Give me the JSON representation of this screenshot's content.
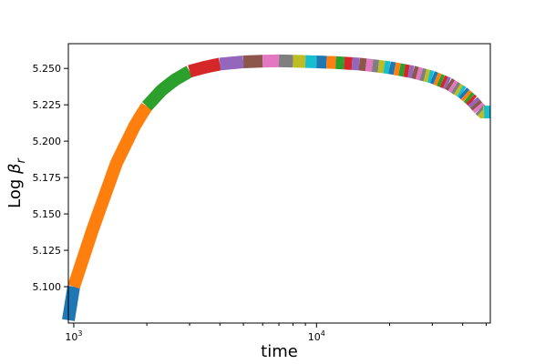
{
  "chart_data": {
    "type": "line",
    "title": "",
    "xlabel": "time",
    "ylabel_text": "Log ",
    "ylabel_symbol": "β",
    "ylabel_subscript": "r",
    "xscale": "log",
    "xlim": [
      950,
      52000
    ],
    "ylim": [
      5.075,
      5.267
    ],
    "grid": false,
    "yticks": [
      {
        "value": 5.1,
        "label": "5.100"
      },
      {
        "value": 5.125,
        "label": "5.125"
      },
      {
        "value": 5.15,
        "label": "5.150"
      },
      {
        "value": 5.175,
        "label": "5.175"
      },
      {
        "value": 5.2,
        "label": "5.200"
      },
      {
        "value": 5.225,
        "label": "5.225"
      },
      {
        "value": 5.25,
        "label": "5.250"
      }
    ],
    "xticks_major": [
      {
        "value": 1000,
        "base": "10",
        "exp": "3"
      },
      {
        "value": 10000,
        "base": "10",
        "exp": "4"
      }
    ],
    "xticks_minor": [
      2000,
      3000,
      4000,
      5000,
      6000,
      7000,
      8000,
      9000,
      20000,
      30000,
      40000,
      50000
    ],
    "curve_points": [
      [
        950,
        5.077
      ],
      [
        1000,
        5.1
      ],
      [
        1200,
        5.14
      ],
      [
        1500,
        5.185
      ],
      [
        1800,
        5.212
      ],
      [
        2000,
        5.224
      ],
      [
        2300,
        5.235
      ],
      [
        2600,
        5.242
      ],
      [
        3000,
        5.248
      ],
      [
        3500,
        5.251
      ],
      [
        4000,
        5.253
      ],
      [
        5000,
        5.2545
      ],
      [
        6000,
        5.255
      ],
      [
        7000,
        5.2552
      ],
      [
        8000,
        5.255
      ],
      [
        10000,
        5.2545
      ],
      [
        12000,
        5.254
      ],
      [
        15000,
        5.253
      ],
      [
        18000,
        5.2515
      ],
      [
        20000,
        5.2505
      ],
      [
        25000,
        5.2475
      ],
      [
        30000,
        5.244
      ],
      [
        35000,
        5.2395
      ],
      [
        40000,
        5.2335
      ],
      [
        44000,
        5.2275
      ],
      [
        47000,
        5.222
      ],
      [
        48500,
        5.22
      ],
      [
        50000,
        5.22
      ],
      [
        52000,
        5.22
      ]
    ],
    "segment_boundaries": [
      950,
      1000,
      2000,
      3000,
      4000,
      5000,
      6000,
      7000,
      8000,
      9000,
      10000,
      11000,
      12000,
      13000,
      14000,
      15000,
      16000,
      17000,
      18000,
      19000,
      20000,
      21000,
      22000,
      23000,
      24000,
      25000,
      26000,
      27000,
      28000,
      29000,
      30000,
      31000,
      32000,
      33000,
      34000,
      35000,
      36000,
      37000,
      38000,
      39000,
      40000,
      41000,
      42000,
      43000,
      44000,
      45000,
      46000,
      47000,
      48000,
      49000,
      52000
    ],
    "series_colors": [
      "#1f77b4",
      "#ff7f0e",
      "#2ca02c",
      "#d62728",
      "#9467bd",
      "#8c564b",
      "#e377c2",
      "#7f7f7f",
      "#bcbd22",
      "#17becf"
    ]
  }
}
